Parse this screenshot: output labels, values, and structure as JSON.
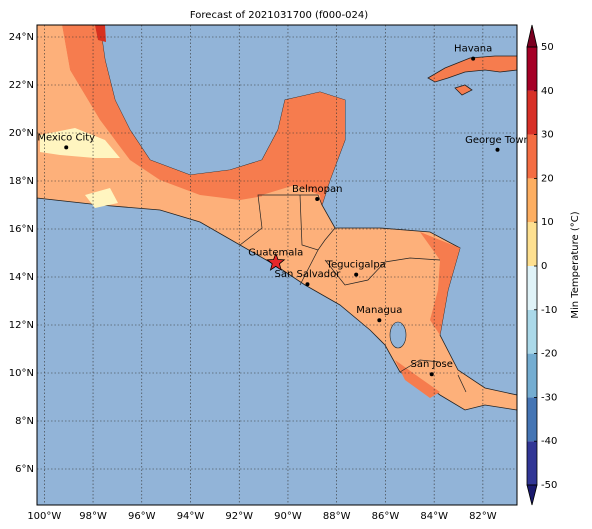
{
  "title": "Forecast of 2021031700 (f000-024)",
  "map": {
    "xlim": [
      -100.3,
      -80.6
    ],
    "ylim": [
      4.5,
      24.5
    ],
    "grid": true,
    "lat_ticks": [
      {
        "value": 6,
        "label": "6°N"
      },
      {
        "value": 8,
        "label": "8°N"
      },
      {
        "value": 10,
        "label": "10°N"
      },
      {
        "value": 12,
        "label": "12°N"
      },
      {
        "value": 14,
        "label": "14°N"
      },
      {
        "value": 16,
        "label": "16°N"
      },
      {
        "value": 18,
        "label": "18°N"
      },
      {
        "value": 20,
        "label": "20°N"
      },
      {
        "value": 22,
        "label": "22°N"
      },
      {
        "value": 24,
        "label": "24°N"
      }
    ],
    "lon_ticks": [
      {
        "value": -100,
        "label": "100°W"
      },
      {
        "value": -98,
        "label": "98°W"
      },
      {
        "value": -96,
        "label": "96°W"
      },
      {
        "value": -94,
        "label": "94°W"
      },
      {
        "value": -92,
        "label": "92°W"
      },
      {
        "value": -90,
        "label": "90°W"
      },
      {
        "value": -88,
        "label": "88°W"
      },
      {
        "value": -86,
        "label": "86°W"
      },
      {
        "value": -84,
        "label": "84°W"
      },
      {
        "value": -82,
        "label": "82°W"
      }
    ],
    "cities": [
      {
        "name": "Havana",
        "lon": -82.4,
        "lat": 23.1,
        "marker": "dot"
      },
      {
        "name": "Mexico City",
        "lon": -99.1,
        "lat": 19.4,
        "marker": "dot"
      },
      {
        "name": "George Town",
        "lon": -81.4,
        "lat": 19.3,
        "marker": "dot"
      },
      {
        "name": "Belmopan",
        "lon": -88.8,
        "lat": 17.25,
        "marker": "dot"
      },
      {
        "name": "Guatemala",
        "lon": -90.5,
        "lat": 14.6,
        "marker": "star"
      },
      {
        "name": "Tegucigalpa",
        "lon": -87.2,
        "lat": 14.1,
        "marker": "dot"
      },
      {
        "name": "San Salvador",
        "lon": -89.2,
        "lat": 13.7,
        "marker": "dot"
      },
      {
        "name": "Managua",
        "lon": -86.25,
        "lat": 12.2,
        "marker": "dot"
      },
      {
        "name": "San Jose",
        "lon": -84.1,
        "lat": 9.95,
        "marker": "dot"
      }
    ]
  },
  "colorbar": {
    "label": "Min Temperature (°C)",
    "ticks": [
      -50,
      -40,
      -30,
      -20,
      -10,
      0,
      10,
      20,
      30,
      40,
      50
    ],
    "colors": [
      "#313695",
      "#4575b4",
      "#74add1",
      "#abd9e9",
      "#e0f3f8",
      "#fee090",
      "#fdae61",
      "#f46d43",
      "#d73027",
      "#a50026"
    ],
    "under_color": "#1a1a6e",
    "over_color": "#7a0020"
  }
}
